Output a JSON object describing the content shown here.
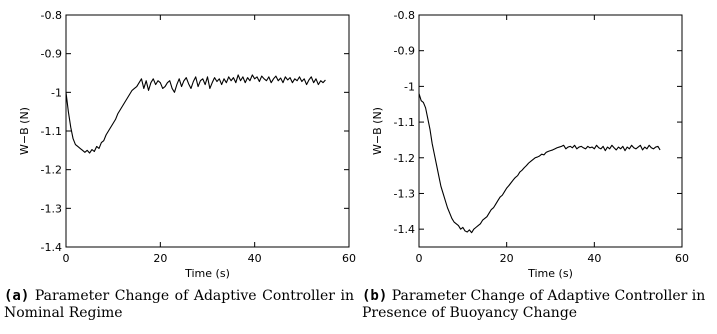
{
  "chart_data": [
    {
      "type": "line",
      "title": "",
      "xlabel": "Time (s)",
      "ylabel": "W−B (N)",
      "xlim": [
        0,
        60
      ],
      "ylim": [
        -1.4,
        -0.8
      ],
      "xticks": [
        0,
        20,
        40,
        60
      ],
      "yticks": [
        -1.4,
        -1.3,
        -1.2,
        -1.1,
        -1.0,
        -0.9,
        -0.8
      ],
      "xtick_labels": [
        "0",
        "20",
        "40",
        "60"
      ],
      "ytick_labels": [
        "-1.4",
        "-1.3",
        "-1.2",
        "-1.1",
        "-1",
        "-0.9",
        "-0.8"
      ],
      "grid": false,
      "series": [
        {
          "x": [
            0,
            0.5,
            1,
            1.5,
            2,
            2.5,
            3,
            3.5,
            4,
            4.5,
            5,
            5.5,
            6,
            6.5,
            7,
            7.5,
            8,
            8.5,
            9,
            9.5,
            10,
            10.5,
            11,
            11.5,
            12,
            12.5,
            13,
            13.5,
            14,
            14.5,
            15,
            15.5,
            16,
            16.5,
            17,
            17.5,
            18,
            18.5,
            19,
            19.5,
            20,
            20.5,
            21,
            21.5,
            22,
            22.5,
            23,
            23.5,
            24,
            24.5,
            25,
            25.5,
            26,
            26.5,
            27,
            27.5,
            28,
            28.5,
            29,
            29.5,
            30,
            30.5,
            31,
            31.5,
            32,
            32.5,
            33,
            33.5,
            34,
            34.5,
            35,
            35.5,
            36,
            36.5,
            37,
            37.5,
            38,
            38.5,
            39,
            39.5,
            40,
            40.5,
            41,
            41.5,
            42,
            42.5,
            43,
            43.5,
            44,
            44.5,
            45,
            45.5,
            46,
            46.5,
            47,
            47.5,
            48,
            48.5,
            49,
            49.5,
            50,
            50.5,
            51,
            51.5,
            52,
            52.5,
            53,
            53.5,
            54,
            54.5,
            55
          ],
          "y": [
            -1.0,
            -1.05,
            -1.09,
            -1.12,
            -1.135,
            -1.14,
            -1.145,
            -1.15,
            -1.155,
            -1.15,
            -1.157,
            -1.148,
            -1.153,
            -1.14,
            -1.145,
            -1.13,
            -1.125,
            -1.11,
            -1.1,
            -1.09,
            -1.08,
            -1.07,
            -1.055,
            -1.045,
            -1.035,
            -1.025,
            -1.015,
            -1.005,
            -0.995,
            -0.99,
            -0.985,
            -0.975,
            -0.965,
            -0.99,
            -0.97,
            -0.995,
            -0.975,
            -0.965,
            -0.98,
            -0.97,
            -0.975,
            -0.99,
            -0.985,
            -0.975,
            -0.97,
            -0.99,
            -1.0,
            -0.98,
            -0.965,
            -0.985,
            -0.97,
            -0.962,
            -0.978,
            -0.99,
            -0.972,
            -0.96,
            -0.985,
            -0.97,
            -0.965,
            -0.98,
            -0.96,
            -0.99,
            -0.975,
            -0.962,
            -0.972,
            -0.965,
            -0.98,
            -0.965,
            -0.975,
            -0.96,
            -0.97,
            -0.962,
            -0.975,
            -0.955,
            -0.97,
            -0.96,
            -0.975,
            -0.962,
            -0.97,
            -0.955,
            -0.965,
            -0.96,
            -0.972,
            -0.958,
            -0.965,
            -0.97,
            -0.96,
            -0.975,
            -0.965,
            -0.958,
            -0.97,
            -0.963,
            -0.975,
            -0.96,
            -0.968,
            -0.962,
            -0.975,
            -0.965,
            -0.97,
            -0.96,
            -0.972,
            -0.965,
            -0.98,
            -0.968,
            -0.96,
            -0.975,
            -0.965,
            -0.98,
            -0.97,
            -0.975,
            -0.968
          ]
        }
      ]
    },
    {
      "type": "line",
      "title": "",
      "xlabel": "Time (s)",
      "ylabel": "W−B (N)",
      "xlim": [
        0,
        60
      ],
      "ylim": [
        -1.45,
        -0.8
      ],
      "xticks": [
        0,
        20,
        40,
        60
      ],
      "yticks": [
        -1.4,
        -1.3,
        -1.2,
        -1.1,
        -1.0,
        -0.9,
        -0.8
      ],
      "xtick_labels": [
        "0",
        "20",
        "40",
        "60"
      ],
      "ytick_labels": [
        "-1.4",
        "-1.3",
        "-1.2",
        "-1.1",
        "-1",
        "-0.9",
        "-0.8"
      ],
      "grid": false,
      "series": [
        {
          "x": [
            0,
            0.5,
            1,
            1.5,
            2,
            2.5,
            3,
            3.5,
            4,
            4.5,
            5,
            5.5,
            6,
            6.5,
            7,
            7.5,
            8,
            8.5,
            9,
            9.5,
            10,
            10.5,
            11,
            11.5,
            12,
            12.5,
            13,
            13.5,
            14,
            14.5,
            15,
            15.5,
            16,
            16.5,
            17,
            17.5,
            18,
            18.5,
            19,
            19.5,
            20,
            20.5,
            21,
            21.5,
            22,
            22.5,
            23,
            23.5,
            24,
            24.5,
            25,
            25.5,
            26,
            26.5,
            27,
            27.5,
            28,
            28.5,
            29,
            29.5,
            30,
            30.5,
            31,
            31.5,
            32,
            32.5,
            33,
            33.5,
            34,
            34.5,
            35,
            35.5,
            36,
            36.5,
            37,
            37.5,
            38,
            38.5,
            39,
            39.5,
            40,
            40.5,
            41,
            41.5,
            42,
            42.5,
            43,
            43.5,
            44,
            44.5,
            45,
            45.5,
            46,
            46.5,
            47,
            47.5,
            48,
            48.5,
            49,
            49.5,
            50,
            50.5,
            51,
            51.5,
            52,
            52.5,
            53,
            53.5,
            54,
            54.5,
            55
          ],
          "y": [
            -1.02,
            -1.04,
            -1.045,
            -1.06,
            -1.09,
            -1.12,
            -1.16,
            -1.19,
            -1.22,
            -1.25,
            -1.28,
            -1.3,
            -1.32,
            -1.34,
            -1.355,
            -1.37,
            -1.38,
            -1.385,
            -1.39,
            -1.4,
            -1.395,
            -1.405,
            -1.408,
            -1.402,
            -1.41,
            -1.4,
            -1.395,
            -1.39,
            -1.385,
            -1.375,
            -1.37,
            -1.365,
            -1.355,
            -1.345,
            -1.34,
            -1.33,
            -1.32,
            -1.31,
            -1.305,
            -1.295,
            -1.285,
            -1.278,
            -1.27,
            -1.262,
            -1.255,
            -1.25,
            -1.24,
            -1.235,
            -1.228,
            -1.222,
            -1.215,
            -1.21,
            -1.205,
            -1.2,
            -1.198,
            -1.195,
            -1.19,
            -1.192,
            -1.185,
            -1.182,
            -1.18,
            -1.178,
            -1.175,
            -1.172,
            -1.17,
            -1.168,
            -1.165,
            -1.175,
            -1.17,
            -1.168,
            -1.172,
            -1.165,
            -1.175,
            -1.17,
            -1.168,
            -1.172,
            -1.175,
            -1.168,
            -1.172,
            -1.17,
            -1.175,
            -1.165,
            -1.172,
            -1.175,
            -1.168,
            -1.18,
            -1.17,
            -1.175,
            -1.165,
            -1.172,
            -1.178,
            -1.17,
            -1.175,
            -1.168,
            -1.18,
            -1.17,
            -1.175,
            -1.165,
            -1.172,
            -1.175,
            -1.17,
            -1.165,
            -1.178,
            -1.17,
            -1.175,
            -1.165,
            -1.172,
            -1.175,
            -1.17,
            -1.168,
            -1.178
          ]
        }
      ]
    }
  ],
  "captions": [
    {
      "tag": "(a)",
      "text": "Parameter Change of Adaptive Controller in Nominal Regime"
    },
    {
      "tag": "(b)",
      "text": "Parameter Change of Adaptive Controller in Presence of Buoyancy Change"
    }
  ],
  "line_color": "#000000",
  "axis_color": "#000000"
}
